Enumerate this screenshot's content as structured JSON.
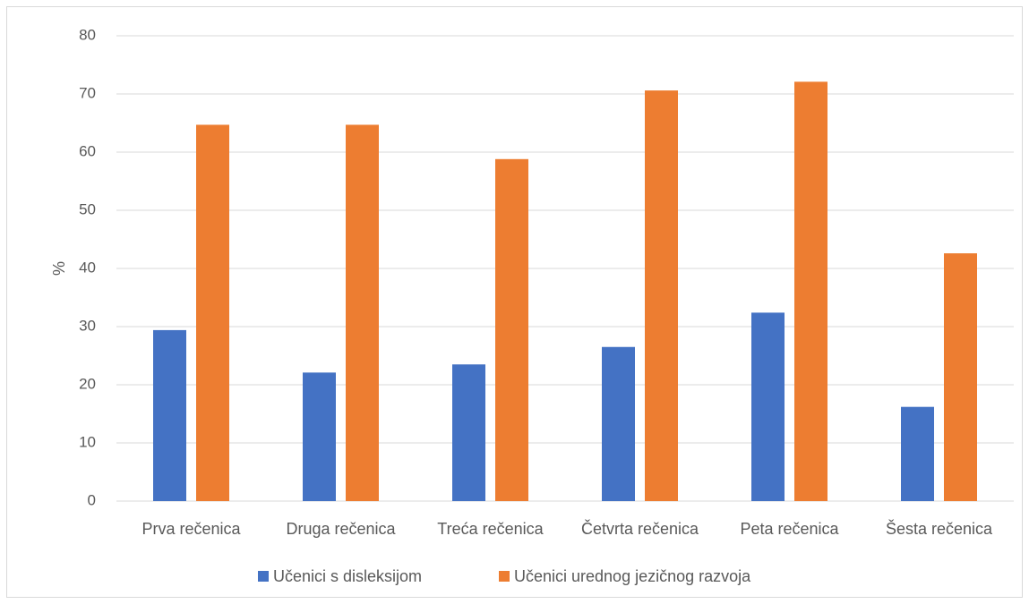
{
  "chart_data": {
    "type": "bar",
    "title": "",
    "xlabel": "",
    "ylabel": "%",
    "ylim": [
      0,
      80
    ],
    "yticks": [
      0,
      10,
      20,
      30,
      40,
      50,
      60,
      70,
      80
    ],
    "grid": true,
    "legend_position": "bottom",
    "categories": [
      "Prva rečenica",
      "Druga rečenica",
      "Treća rečenica",
      "Četvrta rečenica",
      "Peta rečenica",
      "Šesta rečenica"
    ],
    "series": [
      {
        "name": "Učenici s disleksijom",
        "color": "#4472c4",
        "values": [
          29.4,
          22.1,
          23.5,
          26.5,
          32.4,
          16.2
        ]
      },
      {
        "name": "Učenici urednog jezičnog razvoja",
        "color": "#ed7d31",
        "values": [
          64.7,
          64.7,
          58.8,
          70.6,
          72.1,
          42.6
        ]
      }
    ]
  }
}
